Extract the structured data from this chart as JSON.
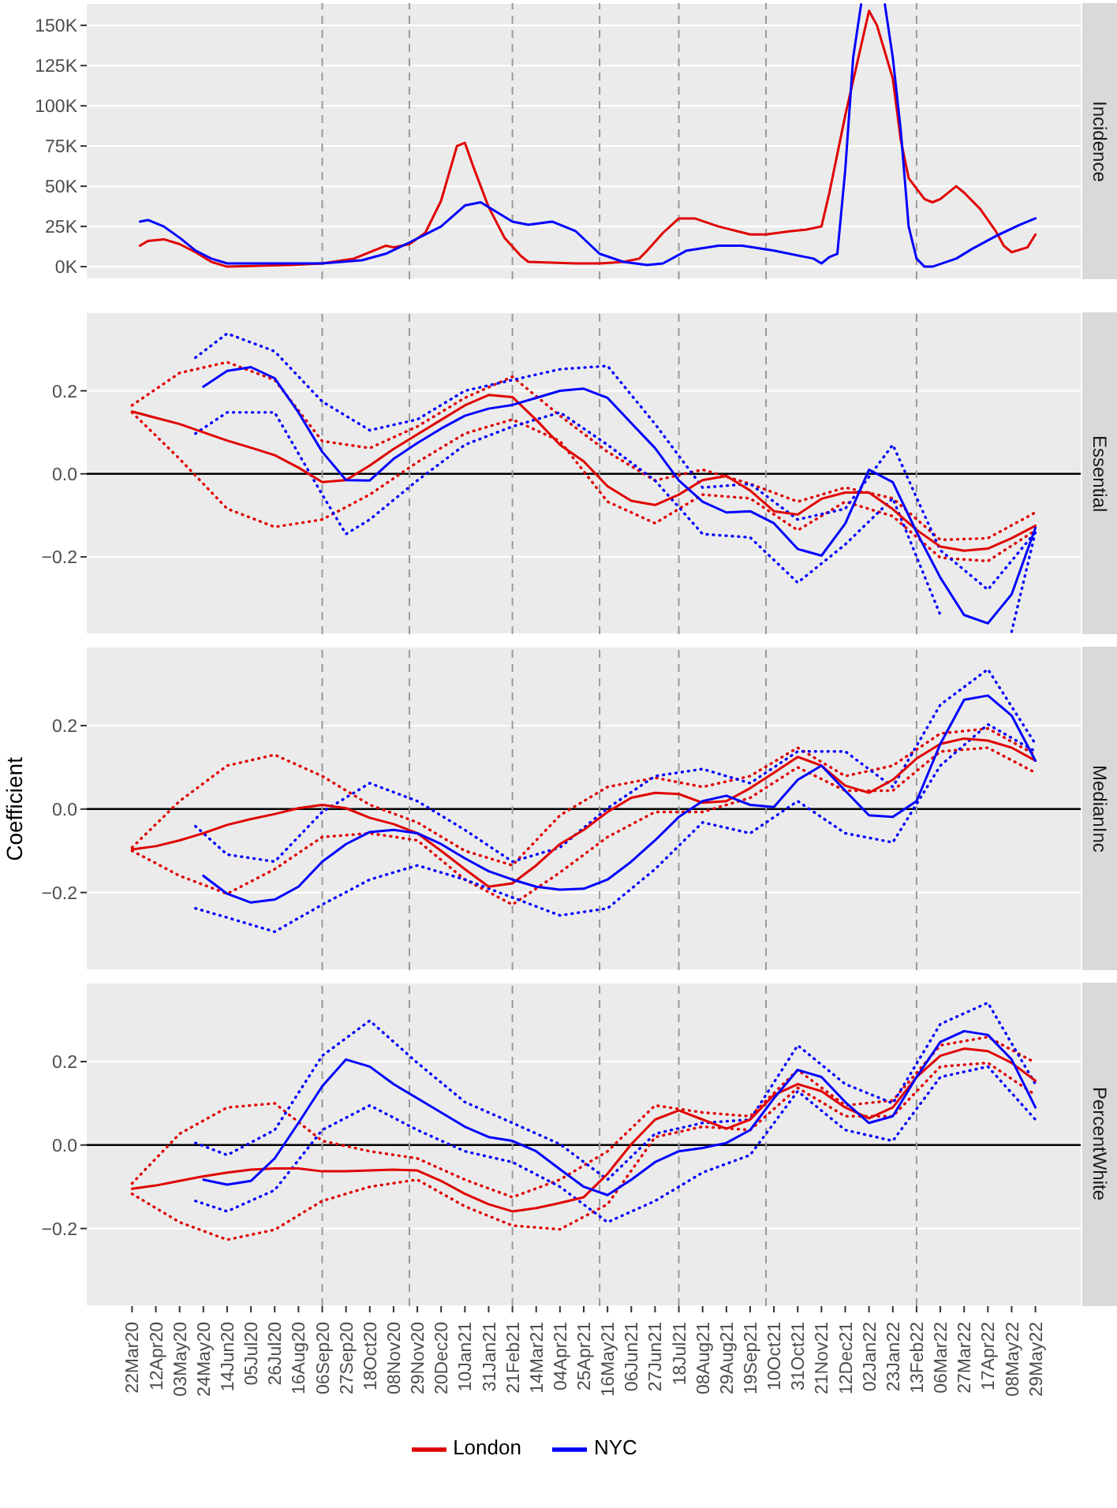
{
  "chart_data": [
    {
      "type": "line",
      "title": "Incidence",
      "xlim": [
        "2020-02-11",
        "2022-07-08"
      ],
      "ylim": [
        -7800,
        163800
      ],
      "yticks": [
        {
          "value": 0,
          "label": "0K"
        },
        {
          "value": 25000,
          "label": "25K"
        },
        {
          "value": 50000,
          "label": "50K"
        },
        {
          "value": 75000,
          "label": "75K"
        },
        {
          "value": 100000,
          "label": "100K"
        },
        {
          "value": 125000,
          "label": "125K"
        },
        {
          "value": 150000,
          "label": "150K"
        }
      ],
      "tick_labels": "y",
      "grid": "y",
      "ref_lines": [
        {
          "axis": "x",
          "value": "2020-09-06",
          "color": "#999999",
          "line_style": "dashed"
        },
        {
          "axis": "x",
          "value": "2020-11-22",
          "color": "#999999",
          "line_style": "dashed"
        },
        {
          "axis": "x",
          "value": "2021-02-21",
          "color": "#999999",
          "line_style": "dashed"
        },
        {
          "axis": "x",
          "value": "2021-05-09",
          "color": "#999999",
          "line_style": "dashed"
        },
        {
          "axis": "x",
          "value": "2021-07-18",
          "color": "#999999",
          "line_style": "dashed"
        },
        {
          "axis": "x",
          "value": "2021-10-03",
          "color": "#999999",
          "line_style": "dashed"
        },
        {
          "axis": "x",
          "value": "2022-02-13",
          "color": "#999999",
          "line_style": "dashed"
        }
      ],
      "series": [
        {
          "color": "#e00000",
          "x": [
            "2020-03-29",
            "2020-04-05",
            "2020-04-19",
            "2020-05-03",
            "2020-05-17",
            "2020-05-31",
            "2020-06-14",
            "2020-08-09",
            "2020-09-06",
            "2020-10-04",
            "2020-11-01",
            "2020-11-08",
            "2020-11-22",
            "2020-12-06",
            "2020-12-20",
            "2021-01-03",
            "2021-01-10",
            "2021-01-17",
            "2021-01-31",
            "2021-02-14",
            "2021-02-28",
            "2021-03-07",
            "2021-04-18",
            "2021-05-09",
            "2021-05-30",
            "2021-06-13",
            "2021-06-20",
            "2021-07-04",
            "2021-07-18",
            "2021-08-01",
            "2021-08-22",
            "2021-09-19",
            "2021-10-03",
            "2021-10-24",
            "2021-11-07",
            "2021-11-21",
            "2021-11-28",
            "2021-12-12",
            "2022-01-02",
            "2022-01-09",
            "2022-01-23",
            "2022-01-30",
            "2022-02-06",
            "2022-02-20",
            "2022-02-27",
            "2022-03-06",
            "2022-03-20",
            "2022-03-27",
            "2022-04-10",
            "2022-04-24",
            "2022-05-01",
            "2022-05-08",
            "2022-05-22",
            "2022-05-29"
          ],
          "values": [
            13000,
            16000,
            17000,
            14000,
            9000,
            3000,
            0,
            1000,
            2000,
            5000,
            13000,
            12000,
            14000,
            21000,
            41000,
            75000,
            77000,
            63000,
            37000,
            18000,
            7000,
            3000,
            2000,
            2000,
            3000,
            5000,
            10000,
            21000,
            30000,
            30000,
            25000,
            20000,
            20000,
            22000,
            23000,
            25000,
            46000,
            94000,
            159000,
            150000,
            117000,
            79000,
            55000,
            42000,
            40000,
            42000,
            50000,
            46000,
            36000,
            22000,
            13000,
            9000,
            12000,
            20000
          ]
        },
        {
          "color": "#0000ff",
          "x": [
            "2020-03-29",
            "2020-04-05",
            "2020-04-19",
            "2020-05-03",
            "2020-05-17",
            "2020-05-31",
            "2020-06-14",
            "2020-08-09",
            "2020-09-06",
            "2020-10-11",
            "2020-11-01",
            "2020-11-22",
            "2020-12-20",
            "2021-01-10",
            "2021-01-24",
            "2021-02-07",
            "2021-02-21",
            "2021-03-07",
            "2021-03-28",
            "2021-04-18",
            "2021-05-09",
            "2021-05-30",
            "2021-06-20",
            "2021-07-04",
            "2021-07-25",
            "2021-08-22",
            "2021-09-12",
            "2021-10-10",
            "2021-11-07",
            "2021-11-14",
            "2021-11-21",
            "2021-11-28",
            "2021-12-05",
            "2021-12-12",
            "2021-12-19",
            "2021-12-26",
            "2022-01-02",
            "2022-01-09",
            "2022-01-16",
            "2022-01-23",
            "2022-01-30",
            "2022-02-06",
            "2022-02-13",
            "2022-02-20",
            "2022-02-27",
            "2022-03-20",
            "2022-04-03",
            "2022-04-24",
            "2022-05-15",
            "2022-05-29"
          ],
          "values": [
            28000,
            29000,
            25000,
            18000,
            10000,
            5000,
            2000,
            2000,
            2000,
            4000,
            8000,
            15000,
            25000,
            38000,
            40000,
            34000,
            28000,
            26000,
            28000,
            22000,
            8000,
            3000,
            1000,
            2000,
            10000,
            13000,
            13000,
            10000,
            6000,
            5000,
            2000,
            6000,
            8000,
            60000,
            130000,
            163000,
            null,
            null,
            163000,
            130000,
            85000,
            25000,
            5000,
            0,
            0,
            5000,
            11000,
            19000,
            26000,
            30000
          ]
        }
      ]
    },
    {
      "type": "line",
      "title": "Essential",
      "xlim": [
        "2020-02-11",
        "2022-07-08"
      ],
      "ylim": [
        -0.386,
        0.389
      ],
      "yticks": [
        {
          "value": -0.2,
          "label": "−0.2"
        },
        {
          "value": 0,
          "label": "0.0"
        },
        {
          "value": 0.2,
          "label": "0.2"
        }
      ],
      "tick_labels": "y",
      "grid": "y",
      "ref_lines": [
        {
          "axis": "y",
          "value": 0,
          "color": "#000000",
          "line_style": "solid"
        },
        {
          "axis": "x",
          "value": "2020-09-06",
          "color": "#999999",
          "line_style": "dashed"
        },
        {
          "axis": "x",
          "value": "2020-11-22",
          "color": "#999999",
          "line_style": "dashed"
        },
        {
          "axis": "x",
          "value": "2021-02-21",
          "color": "#999999",
          "line_style": "dashed"
        },
        {
          "axis": "x",
          "value": "2021-05-09",
          "color": "#999999",
          "line_style": "dashed"
        },
        {
          "axis": "x",
          "value": "2021-07-18",
          "color": "#999999",
          "line_style": "dashed"
        },
        {
          "axis": "x",
          "value": "2021-10-03",
          "color": "#999999",
          "line_style": "dashed"
        },
        {
          "axis": "x",
          "value": "2022-02-13",
          "color": "#999999",
          "line_style": "dashed"
        }
      ],
      "x": [
        "2020-03-22",
        "2020-04-12",
        "2020-05-03",
        "2020-05-24",
        "2020-06-14",
        "2020-07-05",
        "2020-07-26",
        "2020-08-16",
        "2020-09-06",
        "2020-09-27",
        "2020-10-18",
        "2020-11-08",
        "2020-11-29",
        "2020-12-20",
        "2021-01-10",
        "2021-01-31",
        "2021-02-21",
        "2021-03-14",
        "2021-04-04",
        "2021-04-25",
        "2021-05-16",
        "2021-06-06",
        "2021-06-27",
        "2021-07-18",
        "2021-08-08",
        "2021-08-29",
        "2021-09-19",
        "2021-10-10",
        "2021-10-31",
        "2021-11-21",
        "2021-12-12",
        "2022-01-02",
        "2022-01-23",
        "2022-02-13",
        "2022-03-06",
        "2022-03-27",
        "2022-04-17",
        "2022-05-08",
        "2022-05-29"
      ],
      "series": [
        {
          "color": "#e00000",
          "line_style": "dotted",
          "x": [
            "2020-03-22",
            "2020-05-03",
            "2020-06-14",
            "2020-07-26",
            "2020-09-06",
            "2020-10-18",
            "2020-11-29",
            "2021-01-10",
            "2021-02-21",
            "2021-04-04",
            "2021-05-16",
            "2021-06-27",
            "2021-08-08",
            "2021-09-19",
            "2021-10-31",
            "2021-12-12",
            "2022-01-23",
            "2022-03-06",
            "2022-04-17",
            "2022-05-29"
          ],
          "values": [
            0.165,
            0.243,
            0.269,
            0.226,
            0.079,
            0.062,
            0.114,
            0.183,
            0.234,
            0.14,
            0.053,
            -0.016,
            0.01,
            -0.024,
            -0.067,
            -0.033,
            -0.059,
            -0.159,
            -0.155,
            -0.093
          ]
        },
        {
          "color": "#e00000",
          "line_style": "dotted",
          "x": [
            "2020-03-22",
            "2020-05-03",
            "2020-06-14",
            "2020-07-26",
            "2020-09-06",
            "2020-10-18",
            "2020-11-29",
            "2021-01-10",
            "2021-02-21",
            "2021-04-04",
            "2021-05-16",
            "2021-06-27",
            "2021-08-08",
            "2021-09-19",
            "2021-10-31",
            "2021-12-12",
            "2022-01-23",
            "2022-03-06",
            "2022-04-17",
            "2022-05-29"
          ],
          "values": [
            0.148,
            0.036,
            -0.084,
            -0.128,
            -0.11,
            -0.05,
            0.028,
            0.097,
            0.131,
            0.079,
            -0.067,
            -0.119,
            -0.05,
            -0.059,
            -0.136,
            -0.067,
            -0.102,
            -0.202,
            -0.21,
            -0.136
          ]
        },
        {
          "color": "#0000ff",
          "line_style": "dotted",
          "x": [
            "2020-05-17",
            "2020-06-14",
            "2020-07-26",
            "2020-09-06",
            "2020-10-18",
            "2020-11-29",
            "2021-01-10",
            "2021-02-21",
            "2021-04-04",
            "2021-05-16",
            "2021-06-27",
            "2021-08-08",
            "2021-09-19",
            "2021-10-31",
            "2021-12-12",
            "2022-01-23",
            "2022-03-06",
            "2022-04-17",
            "2022-05-29"
          ],
          "values": [
            0.28,
            0.338,
            0.295,
            0.174,
            0.105,
            0.131,
            0.2,
            0.226,
            0.252,
            0.26,
            0.12,
            -0.033,
            -0.024,
            -0.11,
            -0.084,
            0.07,
            -0.184,
            -0.279,
            -0.14
          ]
        },
        {
          "color": "#0000ff",
          "line_style": "dotted",
          "x": [
            "2020-05-17",
            "2020-06-14",
            "2020-07-26",
            "2020-09-06",
            "2020-09-27",
            "2020-10-18",
            "2020-11-29",
            "2021-01-10",
            "2021-02-21",
            "2021-04-04",
            "2021-05-16",
            "2021-06-27",
            "2021-08-08",
            "2021-09-19",
            "2021-10-31",
            "2021-12-12",
            "2022-01-23",
            "2022-03-06",
            "2022-04-17",
            "2022-05-08",
            "2022-05-29"
          ],
          "values": [
            0.097,
            0.148,
            0.148,
            -0.05,
            -0.145,
            -0.11,
            -0.016,
            0.07,
            0.114,
            0.148,
            0.07,
            -0.016,
            -0.145,
            -0.153,
            -0.262,
            -0.17,
            -0.059,
            -0.34,
            null,
            -0.38,
            -0.14
          ]
        },
        {
          "color": "#e00000",
          "values": [
            0.15,
            0.135,
            0.12,
            0.1,
            0.08,
            0.063,
            0.045,
            0.015,
            -0.02,
            -0.015,
            0.02,
            0.06,
            0.095,
            0.13,
            0.165,
            0.19,
            0.185,
            0.13,
            0.07,
            0.03,
            -0.03,
            -0.065,
            -0.075,
            -0.05,
            -0.015,
            -0.005,
            -0.04,
            -0.09,
            -0.098,
            -0.06,
            -0.045,
            -0.045,
            -0.085,
            -0.135,
            -0.175,
            -0.185,
            -0.18,
            -0.155,
            -0.125
          ]
        },
        {
          "color": "#0000ff",
          "values": [
            null,
            null,
            null,
            0.21,
            0.248,
            0.257,
            0.23,
            0.148,
            0.053,
            -0.015,
            -0.016,
            0.036,
            0.074,
            0.109,
            0.14,
            0.157,
            0.166,
            0.183,
            0.2,
            0.205,
            0.183,
            0.122,
            0.062,
            -0.016,
            -0.067,
            -0.093,
            -0.09,
            -0.119,
            -0.181,
            -0.197,
            -0.12,
            0.01,
            -0.02,
            -0.14,
            -0.25,
            -0.34,
            -0.36,
            -0.29,
            -0.13
          ]
        }
      ]
    },
    {
      "type": "line",
      "title": "MedianInc",
      "ylabel": "Coefficient",
      "xlim": [
        "2020-02-11",
        "2022-07-08"
      ],
      "ylim": [
        -0.386,
        0.389
      ],
      "yticks": [
        {
          "value": -0.2,
          "label": "−0.2"
        },
        {
          "value": 0,
          "label": "0.0"
        },
        {
          "value": 0.2,
          "label": "0.2"
        }
      ],
      "tick_labels": "y",
      "grid": "y",
      "ref_lines": [
        {
          "axis": "y",
          "value": 0,
          "color": "#000000",
          "line_style": "solid"
        },
        {
          "axis": "x",
          "value": "2020-09-06",
          "color": "#999999",
          "line_style": "dashed"
        },
        {
          "axis": "x",
          "value": "2020-11-22",
          "color": "#999999",
          "line_style": "dashed"
        },
        {
          "axis": "x",
          "value": "2021-02-21",
          "color": "#999999",
          "line_style": "dashed"
        },
        {
          "axis": "x",
          "value": "2021-05-09",
          "color": "#999999",
          "line_style": "dashed"
        },
        {
          "axis": "x",
          "value": "2021-07-18",
          "color": "#999999",
          "line_style": "dashed"
        },
        {
          "axis": "x",
          "value": "2021-10-03",
          "color": "#999999",
          "line_style": "dashed"
        },
        {
          "axis": "x",
          "value": "2022-02-13",
          "color": "#999999",
          "line_style": "dashed"
        }
      ],
      "x": [
        "2020-03-22",
        "2020-04-12",
        "2020-05-03",
        "2020-05-24",
        "2020-06-14",
        "2020-07-05",
        "2020-07-26",
        "2020-08-16",
        "2020-09-06",
        "2020-09-27",
        "2020-10-18",
        "2020-11-08",
        "2020-11-29",
        "2020-12-20",
        "2021-01-10",
        "2021-01-31",
        "2021-02-21",
        "2021-03-14",
        "2021-04-04",
        "2021-04-25",
        "2021-05-16",
        "2021-06-06",
        "2021-06-27",
        "2021-07-18",
        "2021-08-08",
        "2021-08-29",
        "2021-09-19",
        "2021-10-10",
        "2021-10-31",
        "2021-11-21",
        "2021-12-12",
        "2022-01-02",
        "2022-01-23",
        "2022-02-13",
        "2022-03-06",
        "2022-03-27",
        "2022-04-17",
        "2022-05-08",
        "2022-05-29"
      ],
      "series": [
        {
          "color": "#e00000",
          "line_style": "dotted",
          "x": [
            "2020-03-22",
            "2020-05-03",
            "2020-06-14",
            "2020-07-26",
            "2020-09-06",
            "2020-10-18",
            "2020-11-29",
            "2021-01-10",
            "2021-02-21",
            "2021-04-04",
            "2021-05-16",
            "2021-06-27",
            "2021-08-08",
            "2021-09-19",
            "2021-10-31",
            "2021-12-12",
            "2022-01-23",
            "2022-03-06",
            "2022-04-17",
            "2022-05-29"
          ],
          "values": [
            -0.092,
            0.019,
            0.104,
            0.13,
            0.079,
            0.01,
            -0.032,
            -0.1,
            -0.135,
            -0.015,
            0.053,
            0.075,
            0.053,
            0.079,
            0.147,
            0.079,
            0.104,
            0.181,
            0.193,
            0.13
          ]
        },
        {
          "color": "#e00000",
          "line_style": "dotted",
          "x": [
            "2020-03-22",
            "2020-05-03",
            "2020-06-14",
            "2020-07-26",
            "2020-09-06",
            "2020-10-18",
            "2020-11-29",
            "2021-01-10",
            "2021-02-21",
            "2021-04-04",
            "2021-05-16",
            "2021-06-27",
            "2021-08-08",
            "2021-09-19",
            "2021-10-31",
            "2021-12-12",
            "2022-01-23",
            "2022-03-06",
            "2022-04-17",
            "2022-05-29"
          ],
          "values": [
            -0.1,
            -0.16,
            -0.203,
            -0.144,
            -0.067,
            -0.058,
            -0.075,
            -0.169,
            -0.229,
            -0.152,
            -0.067,
            -0.007,
            -0.007,
            0.027,
            0.1,
            0.044,
            0.044,
            0.138,
            0.147,
            0.087
          ]
        },
        {
          "color": "#0000ff",
          "line_style": "dotted",
          "x": [
            "2020-05-17",
            "2020-06-14",
            "2020-07-26",
            "2020-09-06",
            "2020-10-18",
            "2020-11-29",
            "2021-01-10",
            "2021-02-21",
            "2021-04-04",
            "2021-05-16",
            "2021-06-27",
            "2021-08-08",
            "2021-09-19",
            "2021-10-31",
            "2021-12-12",
            "2022-01-23",
            "2022-03-06",
            "2022-04-17",
            "2022-05-29"
          ],
          "values": [
            -0.041,
            -0.109,
            -0.126,
            -0.007,
            0.062,
            0.019,
            -0.05,
            -0.126,
            -0.092,
            0.002,
            0.079,
            0.096,
            0.062,
            0.138,
            0.138,
            0.053,
            0.25,
            0.335,
            0.156
          ]
        },
        {
          "color": "#0000ff",
          "line_style": "dotted",
          "x": [
            "2020-05-17",
            "2020-06-14",
            "2020-07-26",
            "2020-09-06",
            "2020-10-18",
            "2020-11-29",
            "2021-01-10",
            "2021-02-21",
            "2021-04-04",
            "2021-05-16",
            "2021-06-27",
            "2021-08-08",
            "2021-09-19",
            "2021-10-31",
            "2021-12-12",
            "2022-01-23",
            "2022-03-06",
            "2022-04-17",
            "2022-05-29"
          ],
          "values": [
            -0.238,
            -0.26,
            -0.294,
            -0.229,
            -0.169,
            -0.135,
            -0.169,
            -0.212,
            -0.255,
            -0.238,
            -0.144,
            -0.032,
            -0.058,
            0.019,
            -0.058,
            -0.08,
            0.104,
            0.203,
            0.138
          ]
        },
        {
          "color": "#e00000",
          "values": [
            -0.097,
            -0.089,
            -0.075,
            -0.058,
            -0.038,
            -0.024,
            -0.012,
            0.002,
            0.01,
            0.002,
            -0.021,
            -0.036,
            -0.058,
            -0.1,
            -0.144,
            -0.186,
            -0.178,
            -0.135,
            -0.084,
            -0.05,
            -0.007,
            0.027,
            0.039,
            0.036,
            0.015,
            0.019,
            0.05,
            0.087,
            0.125,
            0.104,
            0.056,
            0.039,
            0.07,
            0.121,
            0.156,
            0.169,
            0.164,
            0.147,
            0.116
          ]
        },
        {
          "color": "#0000ff",
          "values": [
            null,
            null,
            null,
            -0.16,
            -0.203,
            -0.224,
            -0.217,
            -0.186,
            -0.126,
            -0.084,
            -0.055,
            -0.05,
            -0.058,
            -0.084,
            -0.118,
            -0.149,
            -0.169,
            -0.186,
            -0.193,
            -0.191,
            -0.169,
            -0.126,
            -0.075,
            -0.019,
            0.019,
            0.032,
            0.01,
            0.005,
            0.07,
            0.104,
            0.044,
            -0.015,
            -0.019,
            0.019,
            0.156,
            0.262,
            0.272,
            0.224,
            0.116
          ]
        }
      ]
    },
    {
      "type": "line",
      "title": "PercentWhite",
      "xlim": [
        "2020-02-11",
        "2022-07-08"
      ],
      "ylim": [
        -0.386,
        0.389
      ],
      "xticks": [
        {
          "value": "2020-03-22",
          "label": "22Mar20"
        },
        {
          "value": "2020-04-12",
          "label": "12Apr20"
        },
        {
          "value": "2020-05-03",
          "label": "03May20"
        },
        {
          "value": "2020-05-24",
          "label": "24May20"
        },
        {
          "value": "2020-06-14",
          "label": "14Jun20"
        },
        {
          "value": "2020-07-05",
          "label": "05Jul20"
        },
        {
          "value": "2020-07-26",
          "label": "26Jul20"
        },
        {
          "value": "2020-08-16",
          "label": "16Aug20"
        },
        {
          "value": "2020-09-06",
          "label": "06Sep20"
        },
        {
          "value": "2020-09-27",
          "label": "27Sep20"
        },
        {
          "value": "2020-10-18",
          "label": "18Oct20"
        },
        {
          "value": "2020-11-08",
          "label": "08Nov20"
        },
        {
          "value": "2020-11-29",
          "label": "29Nov20"
        },
        {
          "value": "2020-12-20",
          "label": "20Dec20"
        },
        {
          "value": "2021-01-10",
          "label": "10Jan21"
        },
        {
          "value": "2021-01-31",
          "label": "31Jan21"
        },
        {
          "value": "2021-02-21",
          "label": "21Feb21"
        },
        {
          "value": "2021-03-14",
          "label": "14Mar21"
        },
        {
          "value": "2021-04-04",
          "label": "04Apr21"
        },
        {
          "value": "2021-04-25",
          "label": "25Apr21"
        },
        {
          "value": "2021-05-16",
          "label": "16May21"
        },
        {
          "value": "2021-06-06",
          "label": "06Jun21"
        },
        {
          "value": "2021-06-27",
          "label": "27Jun21"
        },
        {
          "value": "2021-07-18",
          "label": "18Jul21"
        },
        {
          "value": "2021-08-08",
          "label": "08Aug21"
        },
        {
          "value": "2021-08-29",
          "label": "29Aug21"
        },
        {
          "value": "2021-09-19",
          "label": "19Sep21"
        },
        {
          "value": "2021-10-10",
          "label": "10Oct21"
        },
        {
          "value": "2021-10-31",
          "label": "31Oct21"
        },
        {
          "value": "2021-11-21",
          "label": "21Nov21"
        },
        {
          "value": "2021-12-12",
          "label": "12Dec21"
        },
        {
          "value": "2022-01-02",
          "label": "02Jan22"
        },
        {
          "value": "2022-01-23",
          "label": "23Jan22"
        },
        {
          "value": "2022-02-13",
          "label": "13Feb22"
        },
        {
          "value": "2022-03-06",
          "label": "06Mar22"
        },
        {
          "value": "2022-03-27",
          "label": "27Mar22"
        },
        {
          "value": "2022-04-17",
          "label": "17Apr22"
        },
        {
          "value": "2022-05-08",
          "label": "08May22"
        },
        {
          "value": "2022-05-29",
          "label": "29May22"
        }
      ],
      "yticks": [
        {
          "value": -0.2,
          "label": "−0.2"
        },
        {
          "value": 0,
          "label": "0.0"
        },
        {
          "value": 0.2,
          "label": "0.2"
        }
      ],
      "grid": "y",
      "legend": "bottom",
      "ref_lines": [
        {
          "axis": "y",
          "value": 0,
          "color": "#000000",
          "line_style": "solid"
        },
        {
          "axis": "x",
          "value": "2020-09-06",
          "color": "#999999",
          "line_style": "dashed"
        },
        {
          "axis": "x",
          "value": "2020-11-22",
          "color": "#999999",
          "line_style": "dashed"
        },
        {
          "axis": "x",
          "value": "2021-02-21",
          "color": "#999999",
          "line_style": "dashed"
        },
        {
          "axis": "x",
          "value": "2021-05-09",
          "color": "#999999",
          "line_style": "dashed"
        },
        {
          "axis": "x",
          "value": "2021-07-18",
          "color": "#999999",
          "line_style": "dashed"
        },
        {
          "axis": "x",
          "value": "2021-10-03",
          "color": "#999999",
          "line_style": "dashed"
        },
        {
          "axis": "x",
          "value": "2022-02-13",
          "color": "#999999",
          "line_style": "dashed"
        }
      ],
      "x": [
        "2020-03-22",
        "2020-04-12",
        "2020-05-03",
        "2020-05-24",
        "2020-06-14",
        "2020-07-05",
        "2020-07-26",
        "2020-08-16",
        "2020-09-06",
        "2020-09-27",
        "2020-10-18",
        "2020-11-08",
        "2020-11-29",
        "2020-12-20",
        "2021-01-10",
        "2021-01-31",
        "2021-02-21",
        "2021-03-14",
        "2021-04-04",
        "2021-04-25",
        "2021-05-16",
        "2021-06-06",
        "2021-06-27",
        "2021-07-18",
        "2021-08-08",
        "2021-08-29",
        "2021-09-19",
        "2021-10-10",
        "2021-10-31",
        "2021-11-21",
        "2021-12-12",
        "2022-01-02",
        "2022-01-23",
        "2022-02-13",
        "2022-03-06",
        "2022-03-27",
        "2022-04-17",
        "2022-05-08",
        "2022-05-29"
      ],
      "series": [
        {
          "color": "#e00000",
          "line_style": "dotted",
          "x": [
            "2020-03-22",
            "2020-05-03",
            "2020-06-14",
            "2020-07-26",
            "2020-09-06",
            "2020-10-18",
            "2020-11-29",
            "2021-01-10",
            "2021-02-21",
            "2021-04-04",
            "2021-05-16",
            "2021-06-27",
            "2021-08-08",
            "2021-09-19",
            "2021-10-31",
            "2021-12-12",
            "2022-01-23",
            "2022-03-06",
            "2022-04-17",
            "2022-05-29"
          ],
          "values": [
            -0.092,
            0.027,
            0.09,
            0.1,
            0.01,
            -0.015,
            -0.032,
            -0.083,
            -0.125,
            -0.083,
            -0.015,
            0.095,
            0.078,
            0.069,
            0.18,
            0.095,
            0.107,
            0.239,
            0.259,
            0.197
          ]
        },
        {
          "color": "#e00000",
          "line_style": "dotted",
          "x": [
            "2020-03-22",
            "2020-05-03",
            "2020-06-14",
            "2020-07-26",
            "2020-09-06",
            "2020-10-18",
            "2020-11-29",
            "2021-01-10",
            "2021-02-21",
            "2021-04-04",
            "2021-05-16",
            "2021-06-27",
            "2021-08-08",
            "2021-09-19",
            "2021-10-31",
            "2021-12-12",
            "2022-01-23",
            "2022-03-06",
            "2022-04-17",
            "2022-05-29"
          ],
          "values": [
            -0.117,
            -0.185,
            -0.227,
            -0.203,
            -0.134,
            -0.1,
            -0.083,
            -0.147,
            -0.193,
            -0.202,
            -0.142,
            0.019,
            0.044,
            0.036,
            0.137,
            0.069,
            0.069,
            0.188,
            0.197,
            0.12
          ]
        },
        {
          "color": "#0000ff",
          "line_style": "dotted",
          "x": [
            "2020-05-17",
            "2020-06-14",
            "2020-07-26",
            "2020-09-06",
            "2020-10-18",
            "2020-11-29",
            "2021-01-10",
            "2021-02-21",
            "2021-04-04",
            "2021-05-16",
            "2021-06-27",
            "2021-08-08",
            "2021-09-19",
            "2021-10-31",
            "2021-12-12",
            "2022-01-23",
            "2022-03-06",
            "2022-04-17",
            "2022-05-29"
          ],
          "values": [
            0.005,
            -0.024,
            0.036,
            0.214,
            0.298,
            0.197,
            0.103,
            0.053,
            0.002,
            -0.083,
            0.027,
            0.053,
            0.061,
            0.239,
            0.146,
            0.1,
            0.29,
            0.341,
            0.146
          ]
        },
        {
          "color": "#0000ff",
          "line_style": "dotted",
          "x": [
            "2020-05-17",
            "2020-06-14",
            "2020-07-26",
            "2020-09-06",
            "2020-10-18",
            "2020-11-29",
            "2021-01-10",
            "2021-02-21",
            "2021-04-04",
            "2021-05-16",
            "2021-06-27",
            "2021-08-08",
            "2021-09-19",
            "2021-10-31",
            "2021-12-12",
            "2022-01-23",
            "2022-03-06",
            "2022-04-17",
            "2022-05-29"
          ],
          "values": [
            -0.134,
            -0.159,
            -0.108,
            0.036,
            0.095,
            0.036,
            -0.015,
            -0.041,
            -0.1,
            -0.185,
            -0.134,
            -0.066,
            -0.024,
            0.129,
            0.036,
            0.01,
            0.163,
            0.188,
            0.061
          ]
        },
        {
          "name": "London",
          "color": "#e00000",
          "values": [
            -0.105,
            -0.097,
            -0.086,
            -0.075,
            -0.066,
            -0.059,
            -0.056,
            -0.056,
            -0.063,
            -0.063,
            -0.061,
            -0.059,
            -0.061,
            -0.086,
            -0.117,
            -0.142,
            -0.159,
            -0.151,
            -0.139,
            -0.125,
            -0.069,
            0.002,
            0.061,
            0.083,
            0.061,
            0.039,
            0.061,
            0.12,
            0.146,
            0.129,
            0.09,
            0.064,
            0.09,
            0.163,
            0.214,
            0.231,
            0.225,
            0.197,
            0.154
          ]
        },
        {
          "name": "NYC",
          "color": "#0000ff",
          "values": [
            null,
            null,
            null,
            -0.083,
            -0.095,
            -0.086,
            -0.032,
            0.053,
            0.141,
            0.205,
            0.188,
            0.146,
            0.112,
            0.078,
            0.044,
            0.019,
            0.01,
            -0.015,
            -0.058,
            -0.1,
            -0.12,
            -0.083,
            -0.041,
            -0.015,
            -0.007,
            0.005,
            0.036,
            0.112,
            0.18,
            0.163,
            0.103,
            0.053,
            0.069,
            0.163,
            0.247,
            0.273,
            0.264,
            0.205,
            0.09
          ]
        }
      ]
    }
  ]
}
